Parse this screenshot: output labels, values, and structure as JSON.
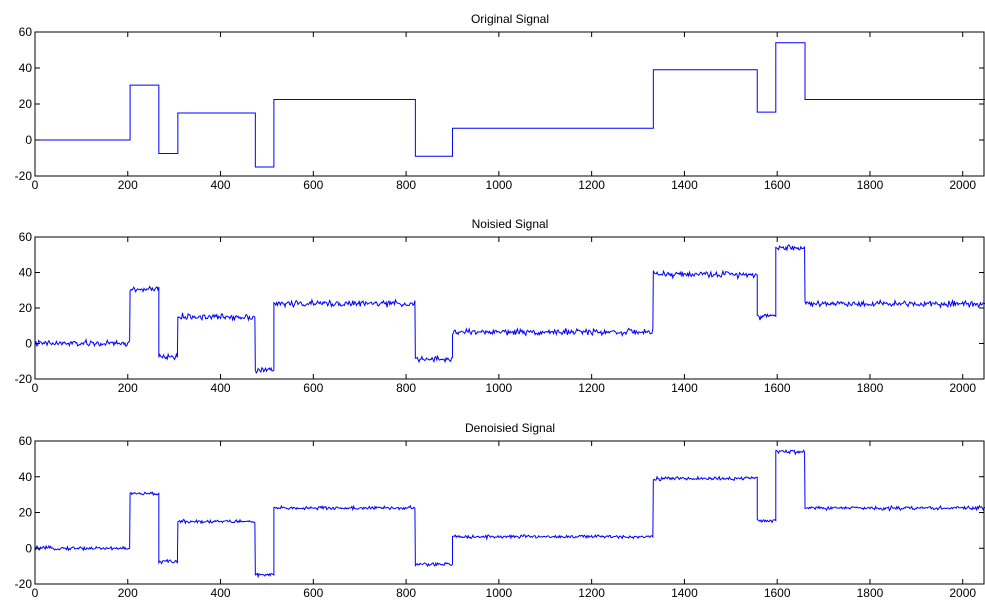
{
  "figure": {
    "line_color": "#0000ff",
    "axis_color": "#000000",
    "background": "#ffffff"
  },
  "chart_data": [
    {
      "type": "line",
      "title": "Original Signal",
      "xlim": [
        0,
        2048
      ],
      "ylim": [
        -20,
        60
      ],
      "xticks": [
        0,
        200,
        400,
        600,
        800,
        1000,
        1200,
        1400,
        1600,
        1800,
        2000
      ],
      "yticks": [
        -20,
        0,
        20,
        40,
        60
      ],
      "noise": 0,
      "series": [
        {
          "segments": [
            [
              0,
              205,
              0
            ],
            [
              205,
              267,
              30.5
            ],
            [
              267,
              308,
              -7.5
            ],
            [
              308,
              475,
              15
            ],
            [
              475,
              515,
              -15
            ],
            [
              515,
              820,
              22.5
            ],
            [
              820,
              900,
              -9
            ],
            [
              900,
              1333,
              6.5
            ],
            [
              1333,
              1557,
              39
            ],
            [
              1557,
              1597,
              15.5
            ],
            [
              1597,
              1660,
              54
            ],
            [
              1660,
              2048,
              22.5
            ]
          ]
        }
      ]
    },
    {
      "type": "line",
      "title": "Noisied Signal",
      "xlim": [
        0,
        2048
      ],
      "ylim": [
        -20,
        60
      ],
      "xticks": [
        0,
        200,
        400,
        600,
        800,
        1000,
        1200,
        1400,
        1600,
        1800,
        2000
      ],
      "yticks": [
        -20,
        0,
        20,
        40,
        60
      ],
      "noise": 1.2,
      "series": [
        {
          "segments": [
            [
              0,
              205,
              0
            ],
            [
              205,
              267,
              30.5
            ],
            [
              267,
              308,
              -7.5
            ],
            [
              308,
              475,
              15
            ],
            [
              475,
              515,
              -15
            ],
            [
              515,
              820,
              22.5
            ],
            [
              820,
              900,
              -9
            ],
            [
              900,
              1333,
              6.5
            ],
            [
              1333,
              1557,
              39
            ],
            [
              1557,
              1597,
              15.5
            ],
            [
              1597,
              1660,
              54
            ],
            [
              1660,
              2048,
              22.5
            ]
          ]
        }
      ]
    },
    {
      "type": "line",
      "title": "Denoisied Signal",
      "xlim": [
        0,
        2048
      ],
      "ylim": [
        -20,
        60
      ],
      "xticks": [
        0,
        200,
        400,
        600,
        800,
        1000,
        1200,
        1400,
        1600,
        1800,
        2000
      ],
      "yticks": [
        -20,
        0,
        20,
        40,
        60
      ],
      "noise": 0.7,
      "series": [
        {
          "segments": [
            [
              0,
              205,
              0
            ],
            [
              205,
              267,
              30.5
            ],
            [
              267,
              308,
              -7.5
            ],
            [
              308,
              475,
              15
            ],
            [
              475,
              515,
              -15
            ],
            [
              515,
              820,
              22.5
            ],
            [
              820,
              900,
              -9
            ],
            [
              900,
              1333,
              6.5
            ],
            [
              1333,
              1557,
              39
            ],
            [
              1557,
              1597,
              15.5
            ],
            [
              1597,
              1660,
              54
            ],
            [
              1660,
              2048,
              22.5
            ]
          ]
        }
      ]
    }
  ]
}
